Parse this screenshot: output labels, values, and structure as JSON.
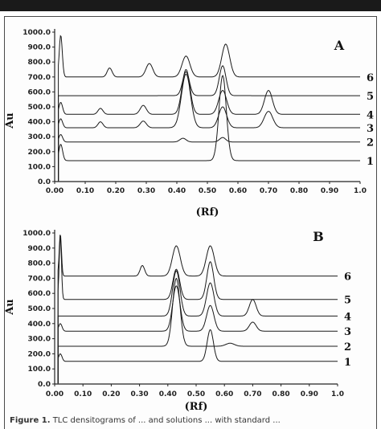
{
  "caption": {
    "prefix": "Figure 1.",
    "text": "TLC densitograms of ... and solutions ... with standard ..."
  },
  "chart_data": [
    {
      "type": "line",
      "panel": "A",
      "xlabel": "(Rf)",
      "ylabel": "Au",
      "xlim": [
        0.0,
        1.0
      ],
      "ylim": [
        0.0,
        1000.0
      ],
      "x_ticks": [
        "0.00",
        "0.10",
        "0.20",
        "0.30",
        "0.40",
        "0.50",
        "0.60",
        "0.70",
        "0.80",
        "0.90",
        "1.0"
      ],
      "y_ticks": [
        "0.0",
        "100.0",
        "200.0",
        "300.0",
        "400.0",
        "500.0",
        "600.0",
        "700.0",
        "800.0",
        "900.0",
        "1000.0"
      ],
      "series": [
        {
          "name": "1",
          "baseline": 140,
          "peaks": [
            [
              0.02,
              110,
              0.006
            ],
            [
              0.55,
              570,
              0.012
            ]
          ]
        },
        {
          "name": "2",
          "baseline": 265,
          "peaks": [
            [
              0.02,
              50,
              0.006
            ],
            [
              0.42,
              25,
              0.01
            ],
            [
              0.55,
              30,
              0.01
            ]
          ]
        },
        {
          "name": "3",
          "baseline": 360,
          "peaks": [
            [
              0.02,
              60,
              0.006
            ],
            [
              0.15,
              40,
              0.008
            ],
            [
              0.29,
              45,
              0.01
            ],
            [
              0.43,
              360,
              0.015
            ],
            [
              0.55,
              140,
              0.013
            ],
            [
              0.7,
              110,
              0.014
            ]
          ]
        },
        {
          "name": "4",
          "baseline": 450,
          "peaks": [
            [
              0.02,
              80,
              0.006
            ],
            [
              0.15,
              40,
              0.008
            ],
            [
              0.29,
              60,
              0.01
            ],
            [
              0.43,
              300,
              0.013
            ],
            [
              0.55,
              160,
              0.013
            ],
            [
              0.7,
              160,
              0.013
            ]
          ]
        },
        {
          "name": "5",
          "baseline": 575,
          "peaks": [
            [
              0.43,
              160,
              0.011
            ],
            [
              0.55,
              200,
              0.011
            ]
          ]
        },
        {
          "name": "6",
          "baseline": 700,
          "peaks": [
            [
              0.02,
              280,
              0.005
            ],
            [
              0.18,
              60,
              0.008
            ],
            [
              0.31,
              90,
              0.011
            ],
            [
              0.43,
              140,
              0.013
            ],
            [
              0.56,
              220,
              0.013
            ]
          ]
        }
      ]
    },
    {
      "type": "line",
      "panel": "B",
      "xlabel": "(Rf)",
      "ylabel": "Au",
      "xlim": [
        0.0,
        1.0
      ],
      "ylim": [
        0.0,
        1000.0
      ],
      "x_ticks": [
        "0.00",
        "0.10",
        "0.20",
        "0.30",
        "0.40",
        "0.50",
        "0.60",
        "0.70",
        "0.80",
        "0.90",
        "1.0"
      ],
      "y_ticks": [
        "0.0",
        "100.0",
        "200.0",
        "300.0",
        "400.0",
        "500.0",
        "600.0",
        "700.0",
        "800.0",
        "900.0",
        "1000.0"
      ],
      "series": [
        {
          "name": "1",
          "baseline": 150,
          "peaks": [
            [
              0.02,
              50,
              0.006
            ],
            [
              0.55,
              210,
              0.011
            ]
          ]
        },
        {
          "name": "2",
          "baseline": 250,
          "peaks": [
            [
              0.43,
              450,
              0.013
            ],
            [
              0.62,
              20,
              0.015
            ]
          ]
        },
        {
          "name": "3",
          "baseline": 350,
          "peaks": [
            [
              0.02,
              50,
              0.006
            ],
            [
              0.43,
              300,
              0.013
            ],
            [
              0.55,
              170,
              0.013
            ],
            [
              0.7,
              60,
              0.012
            ]
          ]
        },
        {
          "name": "4",
          "baseline": 450,
          "peaks": [
            [
              0.43,
              300,
              0.013
            ],
            [
              0.55,
              220,
              0.013
            ],
            [
              0.7,
              110,
              0.012
            ]
          ]
        },
        {
          "name": "5",
          "baseline": 560,
          "peaks": [
            [
              0.02,
              420,
              0.004
            ],
            [
              0.43,
              200,
              0.012
            ],
            [
              0.55,
              250,
              0.012
            ]
          ]
        },
        {
          "name": "6",
          "baseline": 715,
          "peaks": [
            [
              0.02,
              280,
              0.004
            ],
            [
              0.31,
              70,
              0.008
            ],
            [
              0.43,
              200,
              0.014
            ],
            [
              0.55,
              200,
              0.014
            ]
          ]
        }
      ]
    }
  ]
}
